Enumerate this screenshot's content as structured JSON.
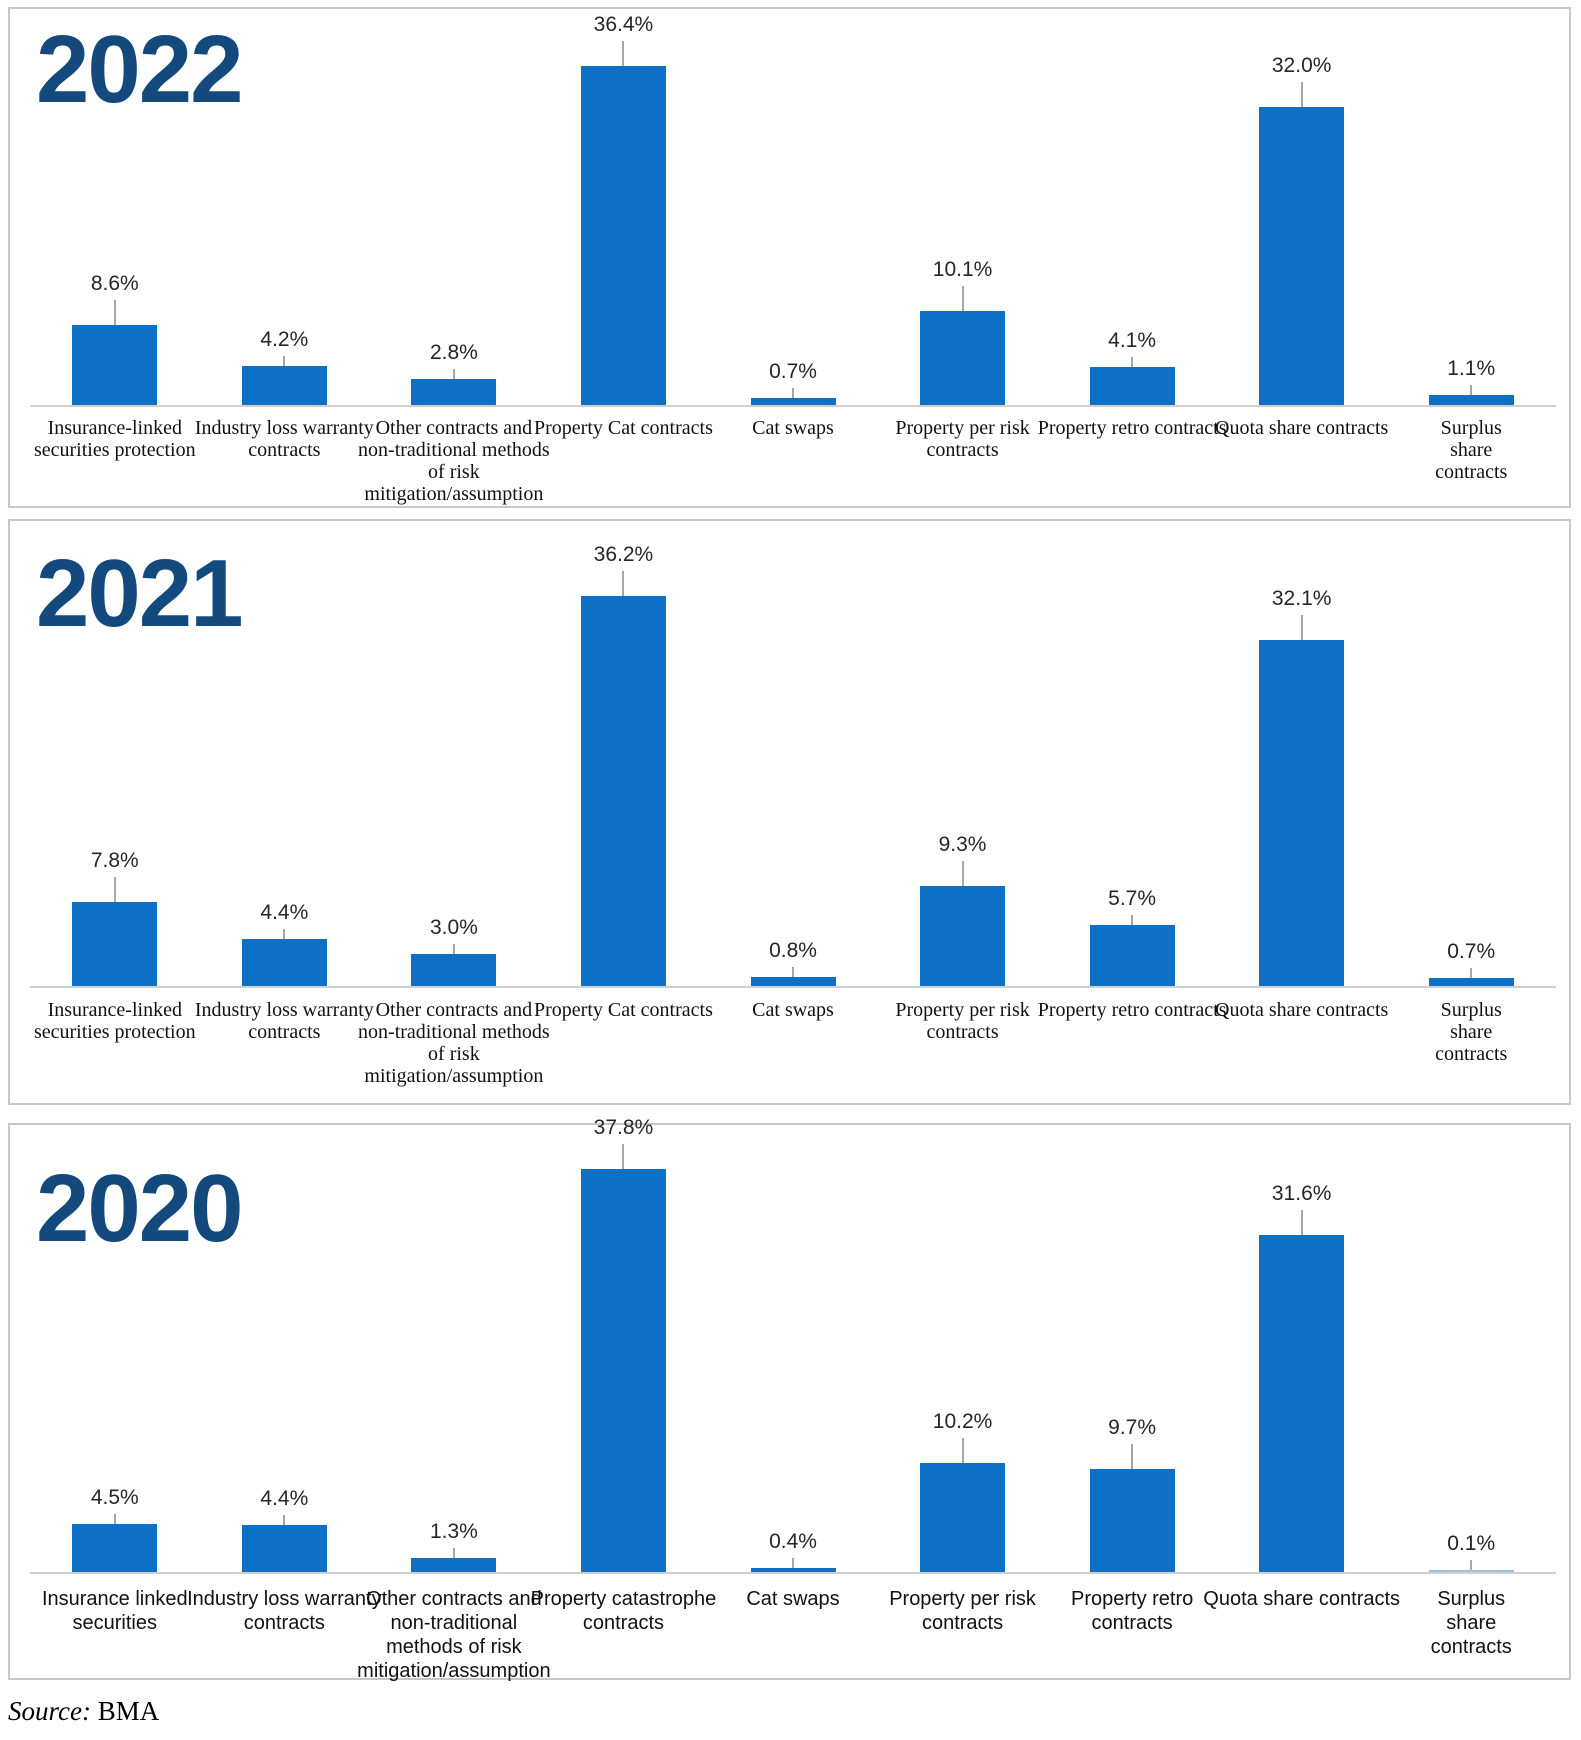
{
  "source": {
    "prefix": "Source:",
    "name": "BMA"
  },
  "colors": {
    "bar": "#0d70c5",
    "bar_light": "#9dc3e6",
    "year_title": "#13497d",
    "value_label": "#262626",
    "category_label": "#111111",
    "axis_line": "#d0d0d0",
    "error_line": "#a6a6a6",
    "panel_border": "#c8c8c8"
  },
  "chart_data": [
    {
      "type": "bar",
      "title": "2022",
      "unit": "percent",
      "ylim": [
        0,
        40
      ],
      "grid": false,
      "legend": "none",
      "categories": [
        "Insurance-linked\nsecurities protection",
        "Industry loss warranty\ncontracts",
        "Other contracts and\nnon-traditional methods\nof risk\nmitigation/assumption",
        "Property Cat contracts",
        "Cat swaps",
        "Property per risk\ncontracts",
        "Property retro contracts",
        "Quota share contracts",
        "Surplus share contracts"
      ],
      "values": [
        8.6,
        4.2,
        2.8,
        36.4,
        0.7,
        10.1,
        4.1,
        32.0,
        1.1
      ],
      "value_labels": [
        "8.6%",
        "4.2%",
        "2.8%",
        "36.4%",
        "0.7%",
        "10.1%",
        "4.1%",
        "32.0%",
        "1.1%"
      ],
      "light_bars": []
    },
    {
      "type": "bar",
      "title": "2021",
      "unit": "percent",
      "ylim": [
        0,
        40
      ],
      "grid": false,
      "legend": "none",
      "categories": [
        "Insurance-linked\nsecurities protection",
        "Industry loss warranty\ncontracts",
        "Other contracts and\nnon-traditional methods\nof risk\nmitigation/assumption",
        "Property Cat contracts",
        "Cat swaps",
        "Property per risk\ncontracts",
        "Property retro contracts",
        "Quota share contracts",
        "Surplus share contracts"
      ],
      "values": [
        7.8,
        4.4,
        3.0,
        36.2,
        0.8,
        9.3,
        5.7,
        32.1,
        0.7
      ],
      "value_labels": [
        "7.8%",
        "4.4%",
        "3.0%",
        "36.2%",
        "0.8%",
        "9.3%",
        "5.7%",
        "32.1%",
        "0.7%"
      ],
      "light_bars": []
    },
    {
      "type": "bar",
      "title": "2020",
      "unit": "percent",
      "ylim": [
        0,
        40
      ],
      "grid": false,
      "legend": "none",
      "categories": [
        "Insurance linked\nsecurities",
        "Industry loss warranty\ncontracts",
        "Other contracts and\nnon-traditional\nmethods of risk\nmitigation/assumption",
        "Property catastrophe\ncontracts",
        "Cat swaps",
        "Property per risk\ncontracts",
        "Property retro\ncontracts",
        "Quota share contracts",
        "Surplus share contracts"
      ],
      "values": [
        4.5,
        4.4,
        1.3,
        37.8,
        0.4,
        10.2,
        9.7,
        31.6,
        0.1
      ],
      "value_labels": [
        "4.5%",
        "4.4%",
        "1.3%",
        "37.8%",
        "0.4%",
        "10.2%",
        "9.7%",
        "31.6%",
        "0.1%"
      ],
      "light_bars": [
        8
      ]
    }
  ]
}
